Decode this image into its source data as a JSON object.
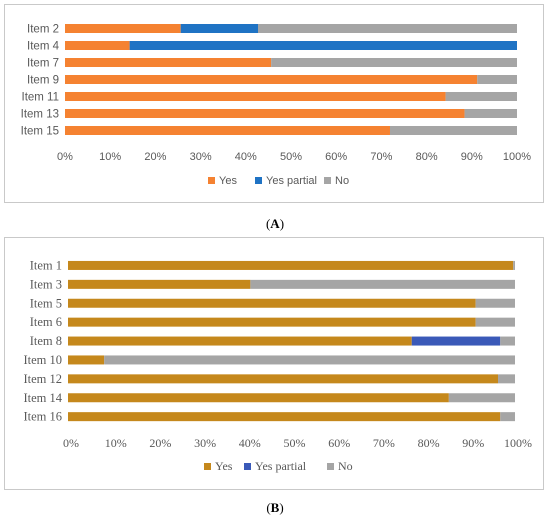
{
  "chart_data": [
    {
      "type": "bar",
      "orientation": "horizontal",
      "stacked": true,
      "percent_axis": true,
      "categories": [
        "Item 2",
        "Item 4",
        "Item 7",
        "Item 9",
        "Item 11",
        "Item 13",
        "Item 15"
      ],
      "series": [
        {
          "name": "Yes",
          "color": "#f58231",
          "values": [
            25.6,
            14.3,
            45.6,
            91.2,
            84.2,
            88.4,
            71.9
          ]
        },
        {
          "name": "Yes  partial",
          "color": "#1f73c4",
          "values": [
            17.1,
            85.7,
            0,
            0,
            0,
            0,
            0
          ]
        },
        {
          "name": "No",
          "color": "#a5a5a5",
          "values": [
            57.3,
            0,
            54.4,
            8.8,
            15.8,
            11.6,
            28.1
          ]
        }
      ],
      "xlim": [
        0,
        100
      ],
      "xticks": [
        "0%",
        "10%",
        "20%",
        "30%",
        "40%",
        "50%",
        "60%",
        "70%",
        "80%",
        "90%",
        "100%"
      ],
      "legend_position": "bottom",
      "grid": false
    },
    {
      "type": "bar",
      "orientation": "horizontal",
      "stacked": true,
      "percent_axis": true,
      "categories": [
        "Item 1",
        "Item 3",
        "Item 5",
        "Item 6",
        "Item 8",
        "Item 10",
        "Item 12",
        "Item 14",
        "Item 16"
      ],
      "series": [
        {
          "name": "Yes",
          "color": "#c5881c",
          "values": [
            99.6,
            40.8,
            91.2,
            91.2,
            76.9,
            8.1,
            96.2,
            85.2,
            96.7
          ]
        },
        {
          "name": "Yes partial",
          "color": "#3a59b8",
          "values": [
            0,
            0,
            0,
            0,
            19.8,
            0,
            0,
            0,
            0
          ]
        },
        {
          "name": "No",
          "color": "#a5a5a5",
          "values": [
            0.4,
            59.2,
            8.8,
            8.8,
            3.3,
            91.9,
            3.8,
            14.8,
            3.3
          ]
        }
      ],
      "xlim": [
        0,
        100
      ],
      "xticks": [
        "0%",
        "10%",
        "20%",
        "30%",
        "40%",
        "50%",
        "60%",
        "70%",
        "80%",
        "90%",
        "100%"
      ],
      "legend_position": "bottom",
      "grid": false
    }
  ],
  "captions": {
    "a_open": "(",
    "a_letter": "A",
    "a_close": ")",
    "b_open": "(",
    "b_letter": "B",
    "b_close": ")"
  }
}
